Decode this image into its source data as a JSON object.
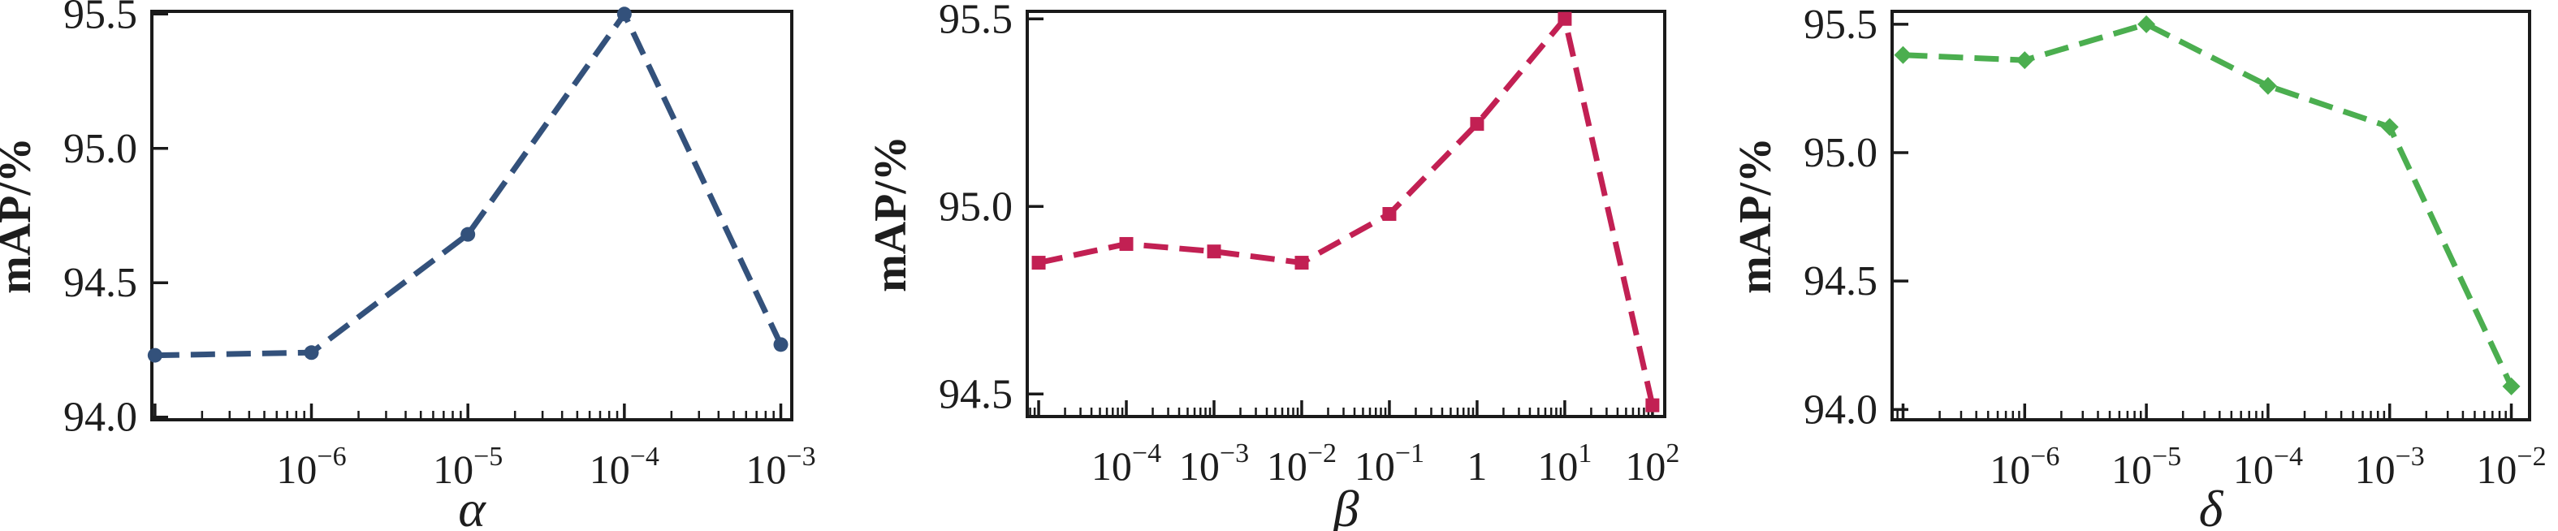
{
  "figure": {
    "background": "#ffffff",
    "spine_color": "#1a1a1a",
    "tick_color": "#1a1a1a",
    "text_color": "#1d1d1d"
  },
  "chart_data": [
    {
      "type": "line",
      "name": "alpha-ablation",
      "title": "",
      "xlabel": "α",
      "ylabel": "mAP/%",
      "xscale": "log",
      "legend": "none",
      "grid": false,
      "color": "#33517b",
      "marker": "circle",
      "linestyle": "dashed",
      "x": [
        1e-07,
        1e-06,
        1e-05,
        0.0001,
        0.001
      ],
      "x_log10": [
        -7,
        -6,
        -5,
        -4,
        -3
      ],
      "y": [
        94.23,
        94.24,
        94.68,
        95.5,
        94.27
      ],
      "xlim_log10": [
        -7.02,
        -2.93
      ],
      "ylim": [
        93.99,
        95.51
      ],
      "yticks": [
        94.0,
        94.5,
        95.0,
        95.5
      ],
      "ytick_labels": [
        "94.0",
        "94.5",
        "95.0",
        "95.5"
      ],
      "labeled_xticks_log10": [
        -6,
        -5,
        -4,
        -3
      ],
      "xtick_labels": [
        "10⁻⁶",
        "10⁻⁵",
        "10⁻⁴",
        "10⁻³"
      ],
      "unlabeled_major_xticks_log10": [
        -7
      ]
    },
    {
      "type": "line",
      "name": "beta-ablation",
      "title": "",
      "xlabel": "β",
      "ylabel": "mAP/%",
      "xscale": "log",
      "legend": "none",
      "grid": false,
      "color": "#c22053",
      "marker": "square",
      "linestyle": "dashed",
      "x": [
        1e-05,
        0.0001,
        0.001,
        0.01,
        0.1,
        1,
        10,
        100
      ],
      "x_log10": [
        -5,
        -4,
        -3,
        -2,
        -1,
        0,
        1,
        2
      ],
      "y": [
        94.85,
        94.9,
        94.88,
        94.85,
        94.98,
        95.22,
        95.5,
        94.47
      ],
      "xlim_log10": [
        -5.13,
        2.14
      ],
      "ylim": [
        94.44,
        95.52
      ],
      "yticks": [
        94.5,
        95.0,
        95.5
      ],
      "ytick_labels": [
        "94.5",
        "95.0",
        "95.5"
      ],
      "labeled_xticks_log10": [
        -4,
        -3,
        -2,
        -1,
        0,
        1,
        2
      ],
      "xtick_labels": [
        "10⁻⁴",
        "10⁻³",
        "10⁻²",
        "10⁻¹",
        "1",
        "10¹",
        "10²"
      ],
      "unlabeled_major_xticks_log10": [
        -5
      ]
    },
    {
      "type": "line",
      "name": "delta-ablation",
      "title": "",
      "xlabel": "δ",
      "ylabel": "mAP/%",
      "xscale": "log",
      "legend": "none",
      "grid": false,
      "color": "#4bae4f",
      "marker": "diamond",
      "linestyle": "dashed",
      "x": [
        1e-07,
        1e-06,
        1e-05,
        0.0001,
        0.001,
        0.01
      ],
      "x_log10": [
        -7,
        -6,
        -5,
        -4,
        -3,
        -2
      ],
      "y": [
        95.38,
        95.36,
        95.5,
        95.26,
        95.1,
        94.09
      ],
      "xlim_log10": [
        -7.09,
        -1.85
      ],
      "ylim": [
        93.96,
        95.55
      ],
      "yticks": [
        94.0,
        94.5,
        95.0,
        95.5
      ],
      "ytick_labels": [
        "94.0",
        "94.5",
        "95.0",
        "95.5"
      ],
      "labeled_xticks_log10": [
        -6,
        -5,
        -4,
        -3,
        -2
      ],
      "xtick_labels": [
        "10⁻⁶",
        "10⁻⁵",
        "10⁻⁴",
        "10⁻³",
        "10⁻²"
      ],
      "unlabeled_major_xticks_log10": [
        -7
      ]
    }
  ]
}
